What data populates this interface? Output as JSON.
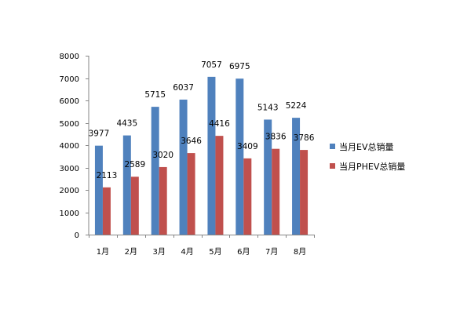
{
  "chart_data": {
    "type": "bar",
    "categories": [
      "1月",
      "2月",
      "3月",
      "4月",
      "5月",
      "6月",
      "7月",
      "8月"
    ],
    "series": [
      {
        "name": "当月EV总销量",
        "color": "#4F81BD",
        "values": [
          3977,
          4435,
          5715,
          6037,
          7057,
          6975,
          5143,
          5224
        ]
      },
      {
        "name": "当月PHEV总销量",
        "color": "#C0504D",
        "values": [
          2113,
          2589,
          3020,
          3646,
          4416,
          3409,
          3836,
          3786
        ]
      }
    ],
    "ylim": [
      0,
      8000
    ],
    "yticks": [
      0,
      1000,
      2000,
      3000,
      4000,
      5000,
      6000,
      7000,
      8000
    ],
    "grid": false,
    "legend_position": "right"
  }
}
